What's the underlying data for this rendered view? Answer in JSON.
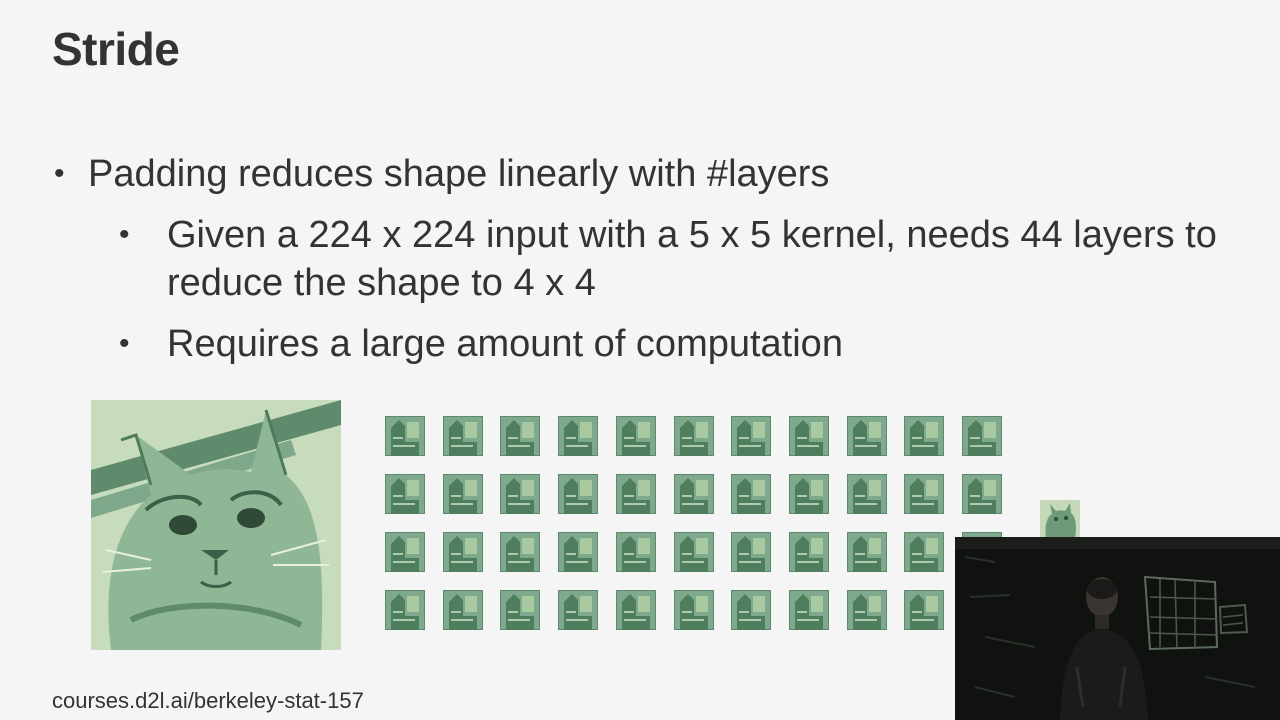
{
  "slide": {
    "title": "Stride",
    "bullets": [
      "Padding reduces shape linearly with #layers",
      "Given a 224 x 224 input with a 5 x 5 kernel, needs 44 layers to reduce the shape to 4 x 4",
      "Requires a large amount of computation"
    ],
    "bullet_symbol": "•",
    "footer": "courses.d2l.ai/berkeley-stat-157"
  },
  "images": {
    "cat": "cat-photo",
    "tiles": {
      "rows": 4,
      "columns": 11,
      "count": 44
    },
    "small_output": "small-cat-thumbnail",
    "webcam": "lecturer-video-overlay"
  },
  "colors": {
    "background": "#f5f5f5",
    "text": "#333333",
    "image_tint": "#7fae8a"
  }
}
